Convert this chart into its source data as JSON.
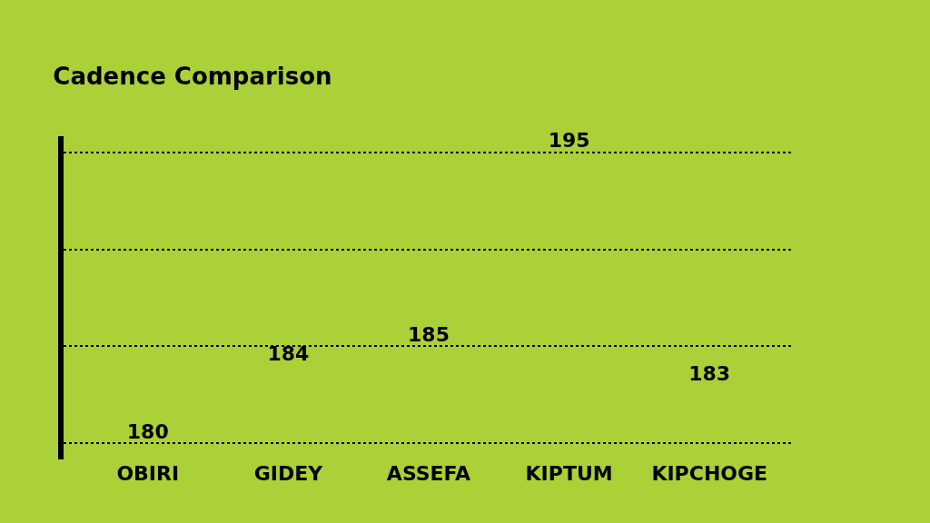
{
  "chart_data": {
    "type": "other",
    "title": "Cadence Comparison",
    "categories": [
      "OBIRI",
      "GIDEY",
      "ASSEFA",
      "KIPTUM",
      "KIPCHOGE"
    ],
    "values": [
      180,
      184,
      185,
      195,
      183
    ],
    "color": "#000000",
    "data_labels": true
  }
}
